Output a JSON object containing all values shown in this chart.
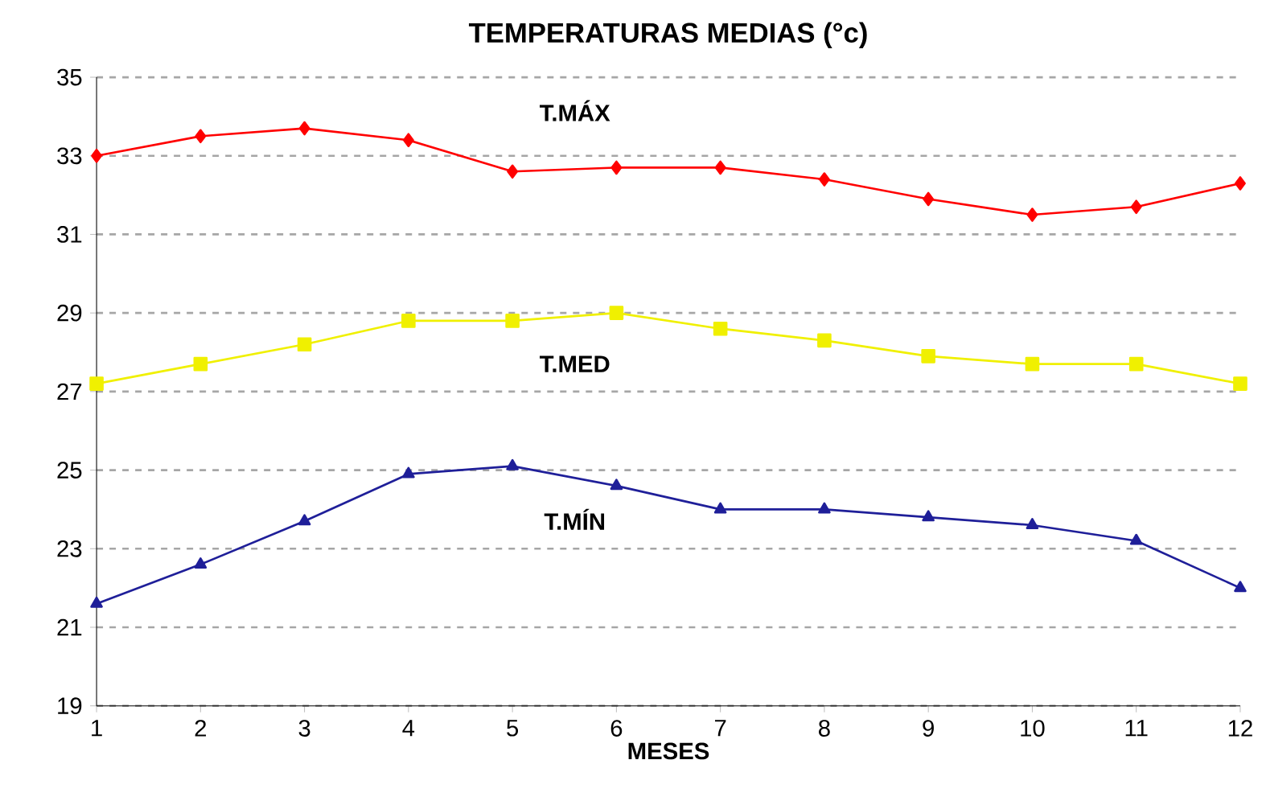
{
  "chart_data": {
    "type": "line",
    "title": "TEMPERATURAS MEDIAS (°c)",
    "xlabel": "MESES",
    "x": [
      1,
      2,
      3,
      4,
      5,
      6,
      7,
      8,
      9,
      10,
      11,
      12
    ],
    "series": [
      {
        "name": "T.MÁX",
        "color": "#ff0000",
        "marker": "diamond",
        "values": [
          33.0,
          33.5,
          33.7,
          33.4,
          32.6,
          32.7,
          32.7,
          32.4,
          31.9,
          31.5,
          31.7,
          32.3
        ]
      },
      {
        "name": "T.MED",
        "color": "#f0f000",
        "marker": "square",
        "values": [
          27.2,
          27.7,
          28.2,
          28.8,
          28.8,
          29.0,
          28.6,
          28.3,
          27.9,
          27.7,
          27.7,
          27.2
        ]
      },
      {
        "name": "T.MÍN",
        "color": "#1f1f99",
        "marker": "triangle",
        "values": [
          21.6,
          22.6,
          23.7,
          24.9,
          25.1,
          24.6,
          24.0,
          24.0,
          23.8,
          23.6,
          23.2,
          22.0
        ]
      }
    ],
    "xlim": [
      1,
      12
    ],
    "ylim": [
      19,
      35
    ],
    "xticks": [
      1,
      2,
      3,
      4,
      5,
      6,
      7,
      8,
      9,
      10,
      11,
      12
    ],
    "yticks": [
      19,
      21,
      23,
      25,
      27,
      29,
      31,
      33,
      35
    ],
    "grid": "y",
    "legend": false,
    "line_style": "solid"
  }
}
